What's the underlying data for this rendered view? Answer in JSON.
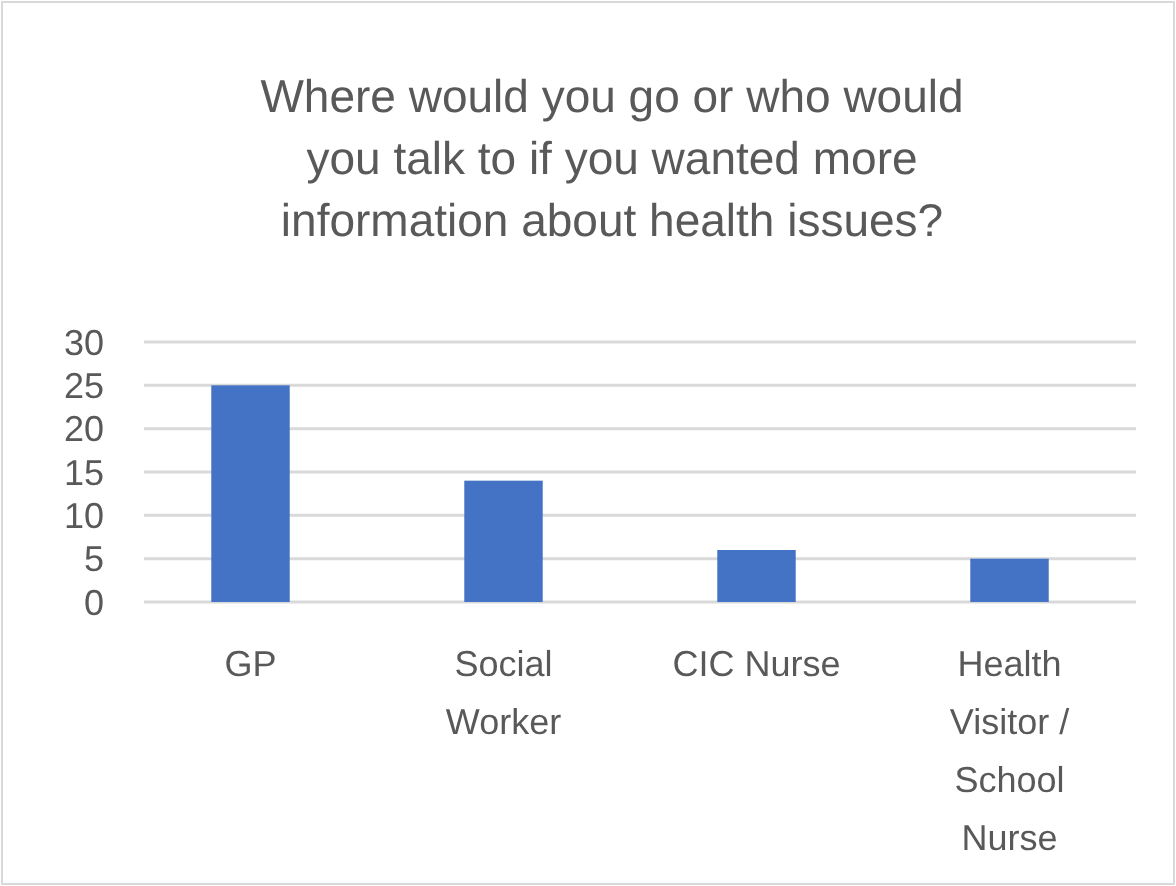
{
  "chart_data": {
    "type": "bar",
    "title": "Where would you go or who would you talk to if you wanted more information about health issues?",
    "categories": [
      "GP",
      "Social Worker",
      "CIC Nurse",
      "Health Visitor / School Nurse"
    ],
    "values": [
      25,
      14,
      6,
      5
    ],
    "color": "#4472c4",
    "ylim": [
      0,
      30
    ],
    "yticks": [
      0,
      5,
      10,
      15,
      20,
      25,
      30
    ],
    "grid": "y"
  }
}
